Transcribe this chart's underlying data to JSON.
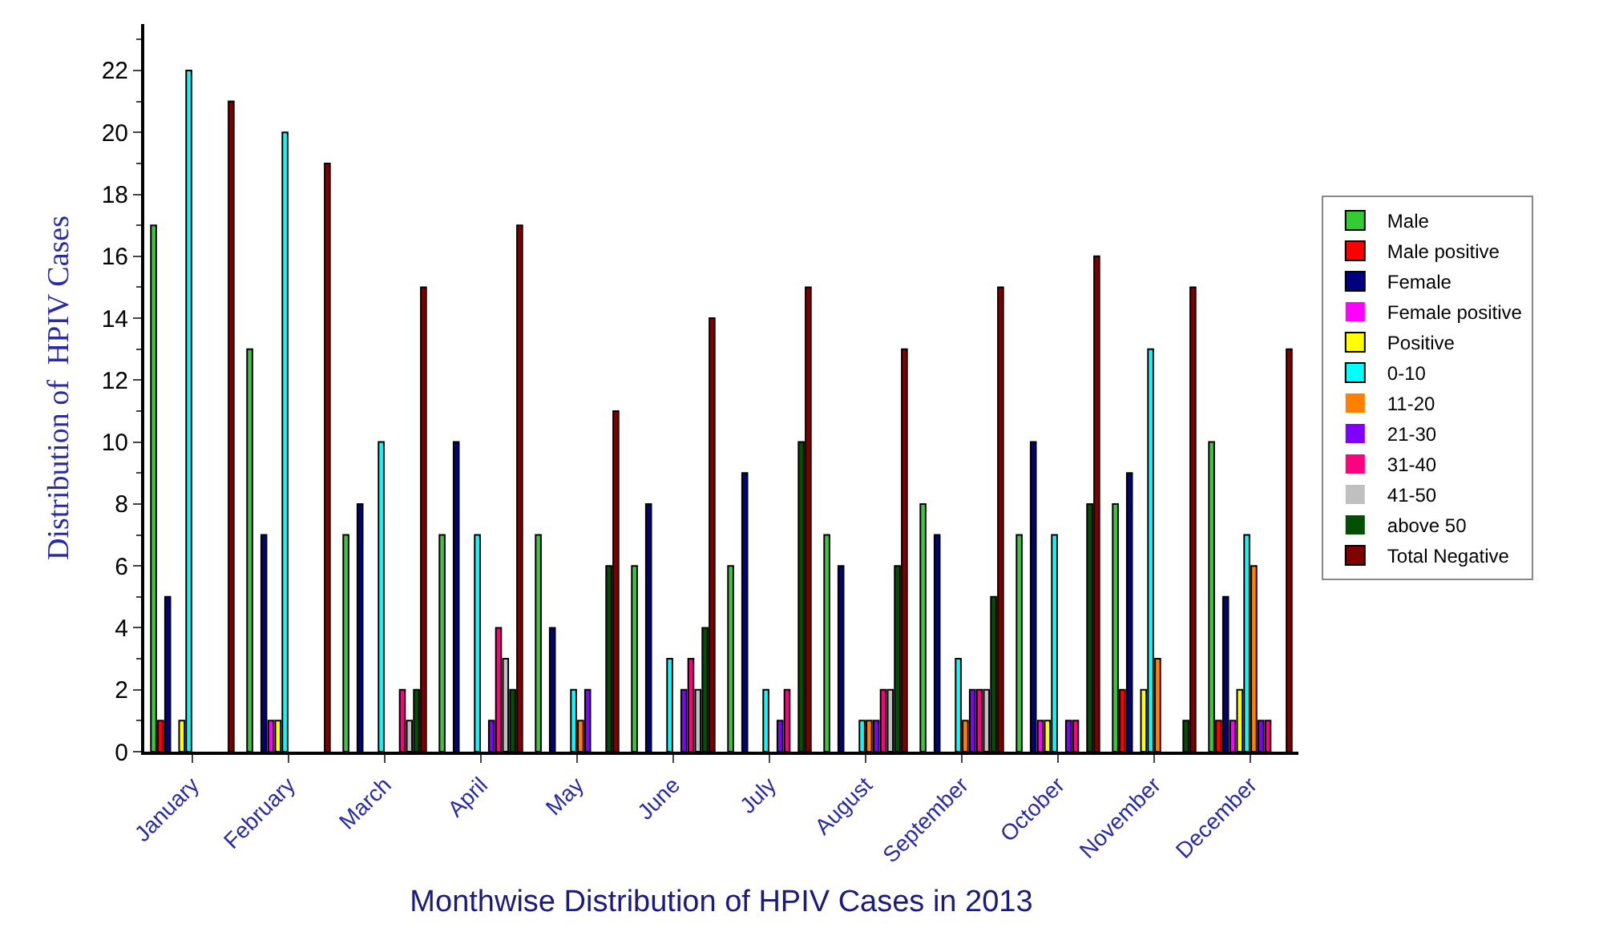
{
  "chart_data": {
    "type": "bar",
    "xlabel": "Monthwise Distribution of HPIV Cases in 2013",
    "ylabel": "Distribution of  HPIV Cases",
    "categories": [
      "January",
      "February",
      "March",
      "April",
      "May",
      "June",
      "July",
      "August",
      "September",
      "October",
      "November",
      "December"
    ],
    "series": [
      {
        "name": "Male",
        "color": "#33cc33",
        "values": [
          17,
          13,
          7,
          7,
          7,
          6,
          6,
          7,
          8,
          7,
          8,
          10
        ]
      },
      {
        "name": "Male positive",
        "color": "#ff0000",
        "values": [
          1,
          0,
          0,
          0,
          0,
          0,
          0,
          0,
          0,
          0,
          2,
          1
        ]
      },
      {
        "name": "Female",
        "color": "#000080",
        "values": [
          5,
          7,
          8,
          10,
          4,
          8,
          9,
          6,
          7,
          10,
          9,
          5
        ]
      },
      {
        "name": "Female positive",
        "color": "#ff00ff",
        "values": [
          0,
          1,
          0,
          0,
          0,
          0,
          0,
          0,
          0,
          1,
          0,
          1
        ]
      },
      {
        "name": "Positive",
        "color": "#ffff00",
        "values": [
          1,
          1,
          0,
          0,
          0,
          0,
          0,
          0,
          0,
          1,
          2,
          2
        ]
      },
      {
        "name": "0-10",
        "color": "#00ffff",
        "values": [
          22,
          20,
          10,
          7,
          2,
          3,
          2,
          1,
          3,
          7,
          13,
          7
        ]
      },
      {
        "name": "11-20",
        "color": "#ff8000",
        "values": [
          0,
          0,
          0,
          0,
          1,
          0,
          0,
          1,
          1,
          0,
          3,
          6
        ]
      },
      {
        "name": "21-30",
        "color": "#8000ff",
        "values": [
          0,
          0,
          0,
          1,
          2,
          2,
          1,
          1,
          2,
          1,
          0,
          1
        ]
      },
      {
        "name": "31-40",
        "color": "#ff0080",
        "values": [
          0,
          0,
          2,
          4,
          0,
          3,
          2,
          2,
          2,
          1,
          0,
          1
        ]
      },
      {
        "name": "41-50",
        "color": "#c0c0c0",
        "values": [
          0,
          0,
          1,
          3,
          0,
          2,
          0,
          2,
          2,
          0,
          0,
          0
        ]
      },
      {
        "name": "above 50",
        "color": "#005000",
        "values": [
          0,
          0,
          2,
          2,
          6,
          4,
          10,
          6,
          5,
          8,
          1,
          0
        ]
      },
      {
        "name": "Total Negative",
        "color": "#800000",
        "values": [
          21,
          19,
          15,
          17,
          11,
          14,
          15,
          13,
          15,
          16,
          15,
          13
        ]
      }
    ],
    "ylim": [
      0,
      23.5
    ],
    "yticks": [
      0,
      2,
      4,
      6,
      8,
      10,
      12,
      14,
      16,
      18,
      20,
      22
    ],
    "legend": "right"
  }
}
